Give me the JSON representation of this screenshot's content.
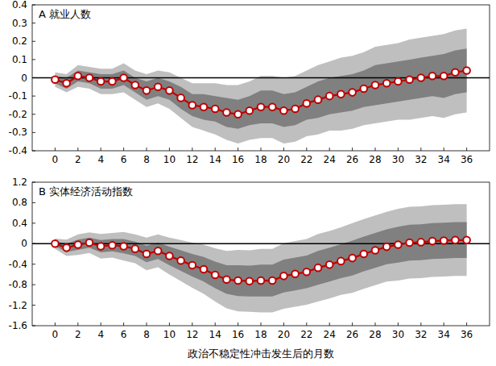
{
  "chart_data": [
    {
      "type": "line",
      "title": "A 就业人数",
      "color": "#c00000",
      "marker": "circle",
      "ref_line": 0,
      "x": [
        0,
        1,
        2,
        3,
        4,
        5,
        6,
        7,
        8,
        9,
        10,
        11,
        12,
        13,
        14,
        15,
        16,
        17,
        18,
        19,
        20,
        21,
        22,
        23,
        24,
        25,
        26,
        27,
        28,
        29,
        30,
        31,
        32,
        33,
        34,
        35,
        36
      ],
      "values": [
        -0.01,
        -0.03,
        0.01,
        0.0,
        -0.02,
        -0.02,
        0.0,
        -0.04,
        -0.07,
        -0.05,
        -0.07,
        -0.11,
        -0.15,
        -0.16,
        -0.17,
        -0.19,
        -0.2,
        -0.18,
        -0.16,
        -0.16,
        -0.18,
        -0.17,
        -0.14,
        -0.12,
        -0.1,
        -0.09,
        -0.08,
        -0.06,
        -0.04,
        -0.03,
        -0.02,
        -0.01,
        0.0,
        0.01,
        0.01,
        0.03,
        0.04
      ],
      "bands": [
        {
          "color": "#bfbfbf",
          "lower": [
            -0.05,
            -0.08,
            -0.05,
            -0.06,
            -0.09,
            -0.09,
            -0.08,
            -0.12,
            -0.16,
            -0.14,
            -0.17,
            -0.22,
            -0.27,
            -0.29,
            -0.31,
            -0.34,
            -0.36,
            -0.34,
            -0.33,
            -0.33,
            -0.36,
            -0.35,
            -0.32,
            -0.31,
            -0.29,
            -0.29,
            -0.28,
            -0.26,
            -0.25,
            -0.24,
            -0.23,
            -0.23,
            -0.22,
            -0.21,
            -0.22,
            -0.2,
            -0.19
          ],
          "upper": [
            0.03,
            0.02,
            0.07,
            0.06,
            0.05,
            0.05,
            0.08,
            0.04,
            0.02,
            0.04,
            0.03,
            0.0,
            -0.03,
            -0.03,
            -0.03,
            -0.04,
            -0.04,
            -0.02,
            0.01,
            0.01,
            0.0,
            0.01,
            0.04,
            0.07,
            0.09,
            0.11,
            0.12,
            0.14,
            0.17,
            0.18,
            0.19,
            0.21,
            0.22,
            0.23,
            0.24,
            0.26,
            0.27
          ]
        },
        {
          "color": "#808080",
          "lower": [
            -0.03,
            -0.06,
            -0.02,
            -0.03,
            -0.06,
            -0.06,
            -0.04,
            -0.08,
            -0.12,
            -0.1,
            -0.12,
            -0.17,
            -0.21,
            -0.23,
            -0.24,
            -0.27,
            -0.28,
            -0.26,
            -0.25,
            -0.25,
            -0.27,
            -0.26,
            -0.23,
            -0.22,
            -0.2,
            -0.19,
            -0.18,
            -0.16,
            -0.15,
            -0.14,
            -0.13,
            -0.12,
            -0.11,
            -0.1,
            -0.11,
            -0.09,
            -0.08
          ],
          "upper": [
            0.01,
            0.0,
            0.04,
            0.03,
            0.02,
            0.02,
            0.04,
            0.0,
            -0.02,
            0.0,
            -0.02,
            -0.05,
            -0.09,
            -0.09,
            -0.1,
            -0.11,
            -0.12,
            -0.1,
            -0.07,
            -0.07,
            -0.09,
            -0.08,
            -0.05,
            -0.02,
            0.0,
            0.01,
            0.02,
            0.04,
            0.07,
            0.08,
            0.09,
            0.1,
            0.11,
            0.12,
            0.13,
            0.15,
            0.16
          ]
        }
      ],
      "xlim": [
        -2,
        38
      ],
      "ylim": [
        -0.4,
        0.4
      ],
      "xticks": [
        0,
        2,
        4,
        6,
        8,
        10,
        12,
        14,
        16,
        18,
        20,
        22,
        24,
        26,
        28,
        30,
        32,
        34,
        36
      ],
      "yticks": [
        -0.4,
        -0.3,
        -0.2,
        -0.1,
        0,
        0.1,
        0.2,
        0.3,
        0.4
      ]
    },
    {
      "type": "line",
      "title": "B 实体经济活动指数",
      "x_label": "政治不稳定性冲击发生后的月数",
      "color": "#c00000",
      "marker": "circle",
      "ref_line": 0,
      "x": [
        0,
        1,
        2,
        3,
        4,
        5,
        6,
        7,
        8,
        9,
        10,
        11,
        12,
        13,
        14,
        15,
        16,
        17,
        18,
        19,
        20,
        21,
        22,
        23,
        24,
        25,
        26,
        27,
        28,
        29,
        30,
        31,
        32,
        33,
        34,
        35,
        36
      ],
      "values": [
        0.0,
        -0.08,
        -0.02,
        0.02,
        -0.05,
        -0.03,
        -0.05,
        -0.1,
        -0.2,
        -0.14,
        -0.24,
        -0.33,
        -0.42,
        -0.5,
        -0.61,
        -0.7,
        -0.72,
        -0.73,
        -0.72,
        -0.72,
        -0.63,
        -0.59,
        -0.55,
        -0.47,
        -0.41,
        -0.34,
        -0.28,
        -0.2,
        -0.13,
        -0.06,
        -0.02,
        0.02,
        0.03,
        0.05,
        0.06,
        0.07,
        0.07
      ],
      "bands": [
        {
          "color": "#bfbfbf",
          "lower": [
            -0.1,
            -0.24,
            -0.22,
            -0.18,
            -0.29,
            -0.27,
            -0.33,
            -0.38,
            -0.52,
            -0.46,
            -0.6,
            -0.73,
            -0.86,
            -0.98,
            -1.13,
            -1.26,
            -1.32,
            -1.33,
            -1.34,
            -1.34,
            -1.27,
            -1.23,
            -1.19,
            -1.13,
            -1.07,
            -1.0,
            -0.96,
            -0.88,
            -0.81,
            -0.74,
            -0.72,
            -0.68,
            -0.67,
            -0.65,
            -0.64,
            -0.63,
            -0.63
          ],
          "upper": [
            0.1,
            0.08,
            0.18,
            0.22,
            0.19,
            0.21,
            0.23,
            0.18,
            0.12,
            0.18,
            0.12,
            0.07,
            0.02,
            -0.02,
            -0.09,
            -0.14,
            -0.12,
            -0.13,
            -0.1,
            -0.1,
            0.01,
            0.05,
            0.09,
            0.19,
            0.25,
            0.32,
            0.4,
            0.48,
            0.55,
            0.62,
            0.68,
            0.72,
            0.73,
            0.75,
            0.76,
            0.77,
            0.77
          ]
        },
        {
          "color": "#808080",
          "lower": [
            -0.05,
            -0.16,
            -0.12,
            -0.08,
            -0.17,
            -0.15,
            -0.19,
            -0.24,
            -0.36,
            -0.3,
            -0.42,
            -0.53,
            -0.64,
            -0.74,
            -0.87,
            -0.98,
            -1.02,
            -1.03,
            -1.03,
            -1.03,
            -0.95,
            -0.91,
            -0.87,
            -0.8,
            -0.74,
            -0.67,
            -0.62,
            -0.54,
            -0.47,
            -0.4,
            -0.37,
            -0.33,
            -0.32,
            -0.3,
            -0.29,
            -0.28,
            -0.28
          ],
          "upper": [
            0.05,
            0.0,
            0.08,
            0.12,
            0.07,
            0.09,
            0.09,
            0.04,
            -0.04,
            0.02,
            -0.06,
            -0.13,
            -0.2,
            -0.26,
            -0.35,
            -0.42,
            -0.42,
            -0.43,
            -0.41,
            -0.41,
            -0.31,
            -0.27,
            -0.23,
            -0.14,
            -0.08,
            -0.01,
            0.06,
            0.14,
            0.21,
            0.28,
            0.33,
            0.37,
            0.38,
            0.4,
            0.41,
            0.42,
            0.42
          ]
        }
      ],
      "xlim": [
        -2,
        38
      ],
      "ylim": [
        -1.6,
        1.2
      ],
      "xticks": [
        0,
        2,
        4,
        6,
        8,
        10,
        12,
        14,
        16,
        18,
        20,
        22,
        24,
        26,
        28,
        30,
        32,
        34,
        36
      ],
      "yticks": [
        -1.6,
        -1.2,
        -0.8,
        -0.4,
        0,
        0.4,
        0.8,
        1.2
      ]
    }
  ]
}
